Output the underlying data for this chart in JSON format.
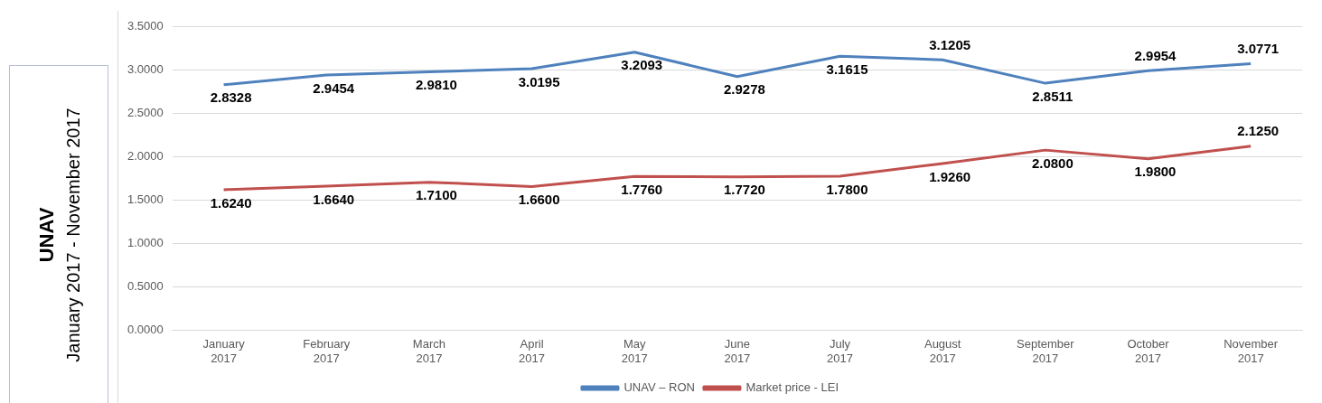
{
  "chart_data": {
    "type": "line",
    "title": "UNAV",
    "subtitle": "January 2017 - November 2017",
    "categories": [
      "January 2017",
      "February 2017",
      "March 2017",
      "April 2017",
      "May 2017",
      "June 2017",
      "July 2017",
      "August 2017",
      "September 2017",
      "October 2017",
      "November 2017"
    ],
    "series": [
      {
        "name": "UNAV – RON",
        "color": "#4f81bd",
        "values": [
          2.8328,
          2.9454,
          2.981,
          3.0195,
          3.2093,
          2.9278,
          3.1615,
          3.1205,
          2.8511,
          2.9954,
          3.0771
        ],
        "value_labels": [
          "2.8328",
          "2.9454",
          "2.9810",
          "3.0195",
          "3.2093",
          "2.9278",
          "3.1615",
          "3.1205",
          "2.8511",
          "2.9954",
          "3.0771"
        ]
      },
      {
        "name": "Market price - LEI",
        "color": "#c0504d",
        "values": [
          1.624,
          1.664,
          1.71,
          1.66,
          1.776,
          1.772,
          1.78,
          1.926,
          2.08,
          1.98,
          2.125
        ],
        "value_labels": [
          "1.6240",
          "1.6640",
          "1.7100",
          "1.6600",
          "1.7760",
          "1.7720",
          "1.7800",
          "1.9260",
          "2.0800",
          "1.9800",
          "2.1250"
        ]
      }
    ],
    "ylim": [
      0,
      3.5
    ],
    "yticks": [
      {
        "value": 0,
        "label": "0.0000"
      },
      {
        "value": 0.5,
        "label": "0.5000"
      },
      {
        "value": 1,
        "label": "1.0000"
      },
      {
        "value": 1.5,
        "label": "1.5000"
      },
      {
        "value": 2,
        "label": "2.0000"
      },
      {
        "value": 2.5,
        "label": "2.5000"
      },
      {
        "value": 3,
        "label": "3.0000"
      },
      {
        "value": 3.5,
        "label": "3.5000"
      }
    ],
    "grid": "y",
    "legend": "bottom",
    "marker": "none",
    "line_style": "solid"
  }
}
